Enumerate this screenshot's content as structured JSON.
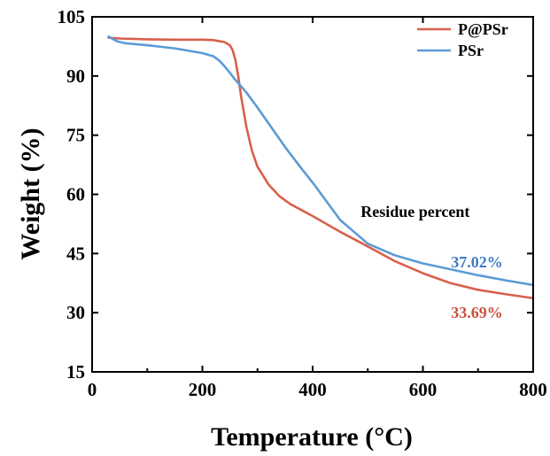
{
  "chart_data": {
    "type": "line",
    "title": "",
    "xlabel": "Temperature (°C)",
    "ylabel": "Weight (%)",
    "xlim": [
      0,
      800
    ],
    "ylim": [
      15,
      105
    ],
    "xticks": [
      0,
      200,
      400,
      600,
      800
    ],
    "yticks": [
      15,
      30,
      45,
      60,
      75,
      90,
      105
    ],
    "xtick_labels": [
      "0",
      "200",
      "400",
      "600",
      "800"
    ],
    "ytick_labels": [
      "15",
      "30",
      "45",
      "60",
      "75",
      "90",
      "105"
    ],
    "grid": false,
    "legend_position": "top-right",
    "series": [
      {
        "name": "P@PSr",
        "color": "#d9604c",
        "x": [
          30,
          50,
          100,
          150,
          200,
          220,
          240,
          250,
          255,
          260,
          265,
          270,
          280,
          290,
          300,
          320,
          340,
          360,
          380,
          400,
          450,
          500,
          550,
          600,
          650,
          700,
          750,
          800
        ],
        "y": [
          99.7,
          99.5,
          99.3,
          99.2,
          99.2,
          99.1,
          98.6,
          97.8,
          96.5,
          94.0,
          90.0,
          85.0,
          77.0,
          71.0,
          67.0,
          62.5,
          59.5,
          57.5,
          56.0,
          54.5,
          50.5,
          46.8,
          43.0,
          40.0,
          37.5,
          35.8,
          34.7,
          33.69
        ]
      },
      {
        "name": "PSr",
        "color": "#5b9bd5",
        "x": [
          30,
          45,
          60,
          100,
          150,
          200,
          220,
          230,
          240,
          250,
          260,
          280,
          300,
          320,
          350,
          380,
          400,
          450,
          500,
          550,
          600,
          650,
          700,
          750,
          800
        ],
        "y": [
          100.0,
          98.8,
          98.3,
          97.8,
          97.0,
          95.8,
          95.0,
          94.0,
          92.5,
          90.8,
          89.0,
          85.8,
          82.0,
          78.0,
          72.0,
          66.5,
          63.0,
          53.5,
          47.5,
          44.5,
          42.5,
          41.0,
          39.5,
          38.2,
          37.02
        ]
      }
    ],
    "annotations": [
      {
        "text": "Residue percent",
        "x": 685,
        "y": 54.3,
        "color": "#000000"
      },
      {
        "text": "37.02%",
        "x": 745,
        "y": 41.5,
        "color": "#3f7cc2"
      },
      {
        "text": "33.69%",
        "x": 745,
        "y": 28.7,
        "color": "#c9513f"
      }
    ]
  }
}
